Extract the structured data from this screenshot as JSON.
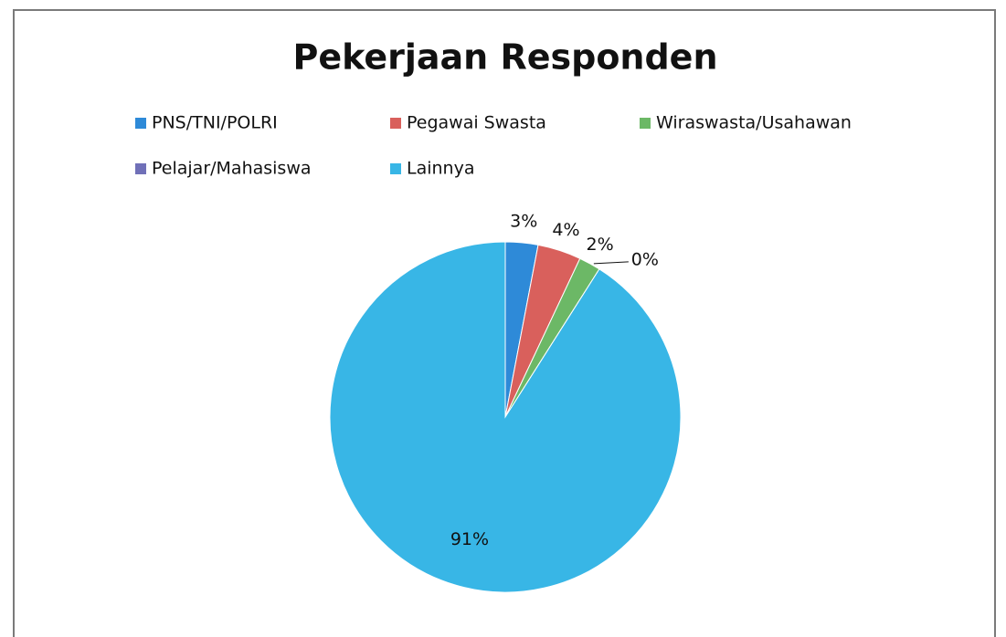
{
  "chart_data": {
    "type": "pie",
    "title": "Pekerjaan Responden",
    "categories": [
      "PNS/TNI/POLRI",
      "Pegawai Swasta",
      "Wiraswasta/Usahawan",
      "Pelajar/Mahasiswa",
      "Lainnya"
    ],
    "values": [
      3,
      4,
      2,
      0,
      91
    ],
    "value_labels": [
      "3%",
      "4%",
      "2%",
      "0%",
      "91%"
    ],
    "colors": [
      "#2e8ad8",
      "#d9605c",
      "#6cb866",
      "#7070b8",
      "#38b6e6"
    ]
  }
}
